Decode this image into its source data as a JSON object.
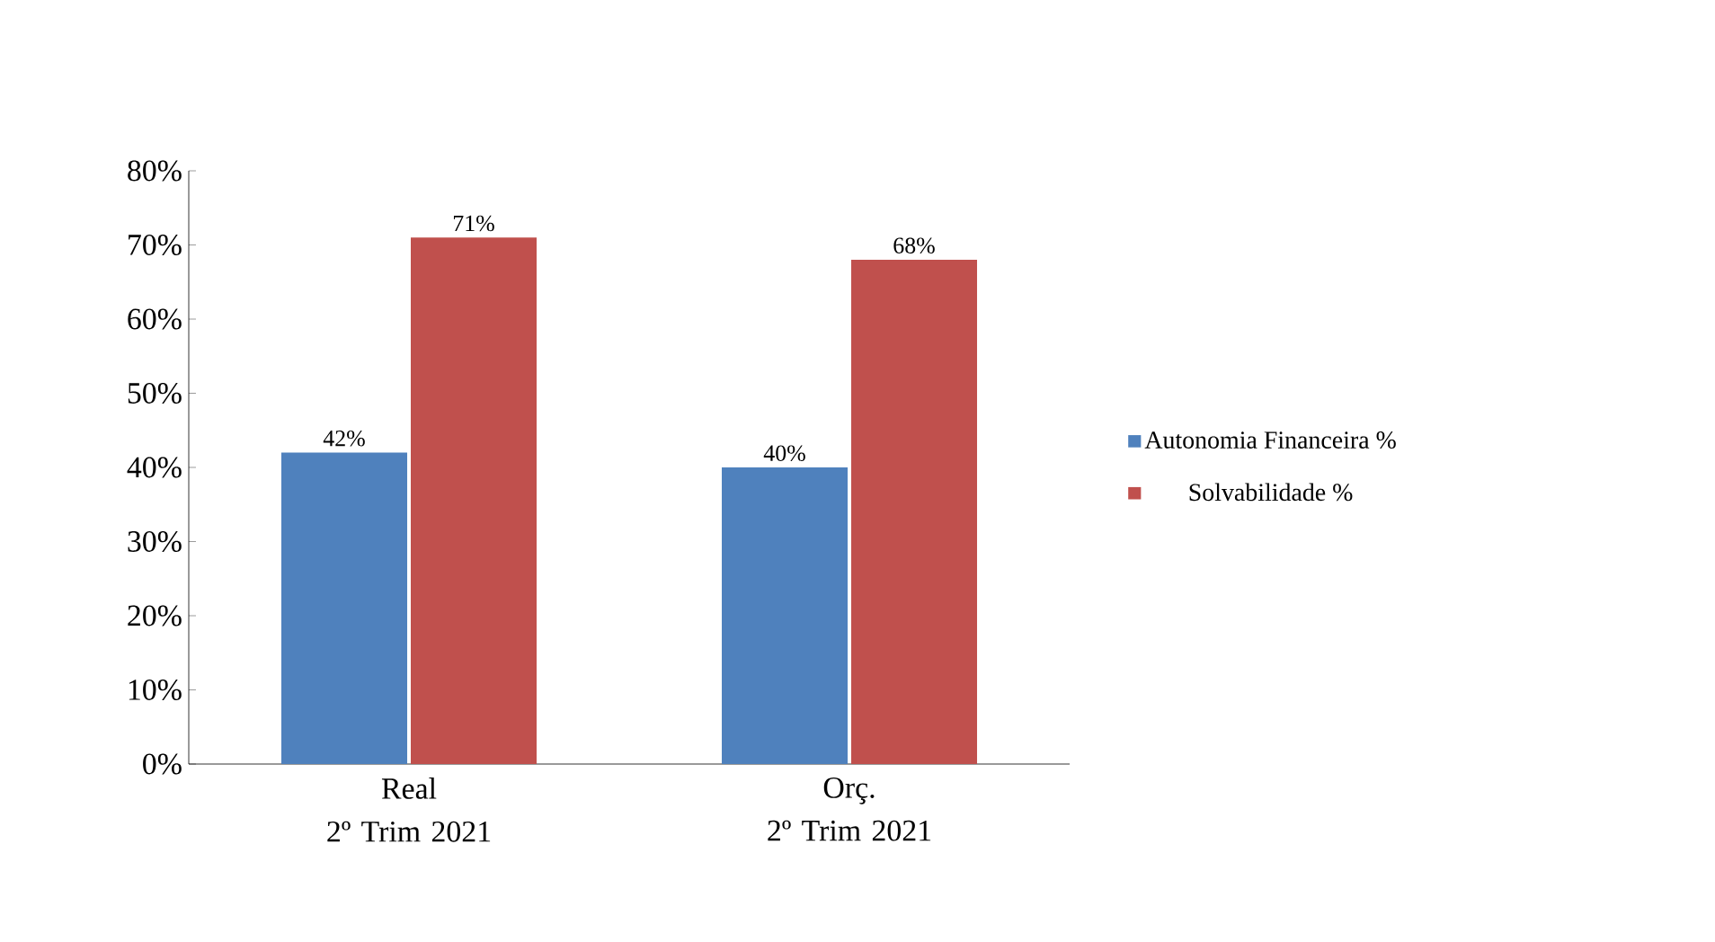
{
  "chart_data": {
    "type": "bar",
    "categories": [
      "Real\n2º Trim 2021",
      "Orç.\n2º Trim 2021"
    ],
    "series": [
      {
        "name": "Autonomia Financeira %",
        "color": "#4f81bd",
        "values": [
          42,
          40
        ],
        "value_labels": [
          "42%",
          "40%"
        ]
      },
      {
        "name": "Solvabilidade %",
        "color": "#c0504d",
        "values": [
          71,
          68
        ],
        "value_labels": [
          "71%",
          "68%"
        ]
      }
    ],
    "ylim": [
      0,
      80
    ],
    "yticks": [
      {
        "value": 0,
        "label": "0%"
      },
      {
        "value": 10,
        "label": "10%"
      },
      {
        "value": 20,
        "label": "20%"
      },
      {
        "value": 30,
        "label": "30%"
      },
      {
        "value": 40,
        "label": "40%"
      },
      {
        "value": 50,
        "label": "50%"
      },
      {
        "value": 60,
        "label": "60%"
      },
      {
        "value": 70,
        "label": "70%"
      },
      {
        "value": 80,
        "label": "80%"
      }
    ],
    "legend": "right",
    "grid": false
  }
}
